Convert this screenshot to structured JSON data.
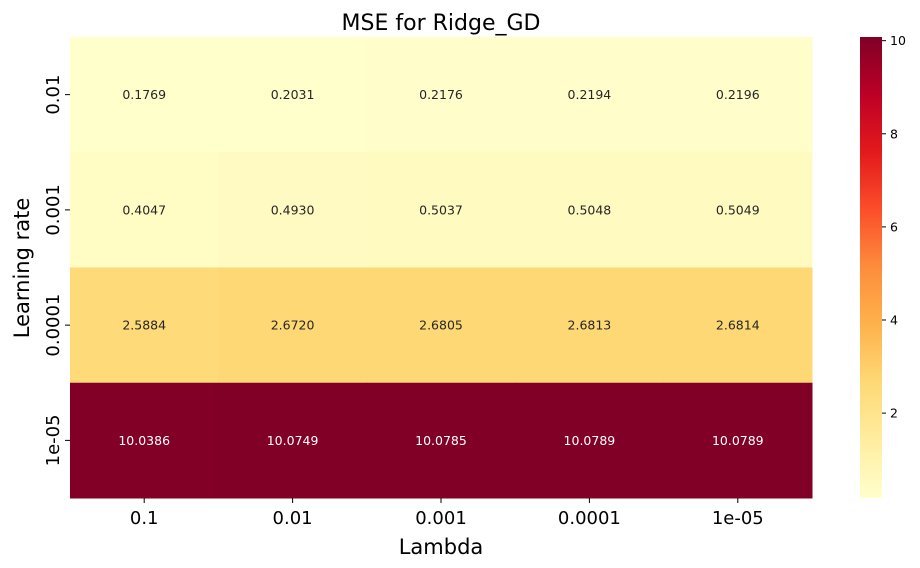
{
  "chart_data": {
    "type": "heatmap",
    "title": "MSE for Ridge_GD",
    "xlabel": "Lambda",
    "ylabel": "Learning rate",
    "x_categories": [
      "0.1",
      "0.01",
      "0.001",
      "0.0001",
      "1e-05"
    ],
    "y_categories": [
      "0.01",
      "0.001",
      "0.0001",
      "1e-05"
    ],
    "values": [
      [
        0.1769,
        0.2031,
        0.2176,
        0.2194,
        0.2196
      ],
      [
        0.4047,
        0.493,
        0.5037,
        0.5048,
        0.5049
      ],
      [
        2.5884,
        2.672,
        2.6805,
        2.6813,
        2.6814
      ],
      [
        10.0386,
        10.0749,
        10.0785,
        10.0789,
        10.0789
      ]
    ],
    "value_labels": [
      [
        "0.1769",
        "0.2031",
        "0.2176",
        "0.2194",
        "0.2196"
      ],
      [
        "0.4047",
        "0.4930",
        "0.5037",
        "0.5048",
        "0.5049"
      ],
      [
        "2.5884",
        "2.6720",
        "2.6805",
        "2.6813",
        "2.6814"
      ],
      [
        "10.0386",
        "10.0749",
        "10.0785",
        "10.0789",
        "10.0789"
      ]
    ],
    "colormap": "YlOrRd",
    "vmin": 0.1769,
    "vmax": 10.0789,
    "colorbar_ticks": [
      2,
      4,
      6,
      8,
      10
    ],
    "colorbar_tick_labels": [
      "2",
      "4",
      "6",
      "8",
      "10"
    ]
  }
}
